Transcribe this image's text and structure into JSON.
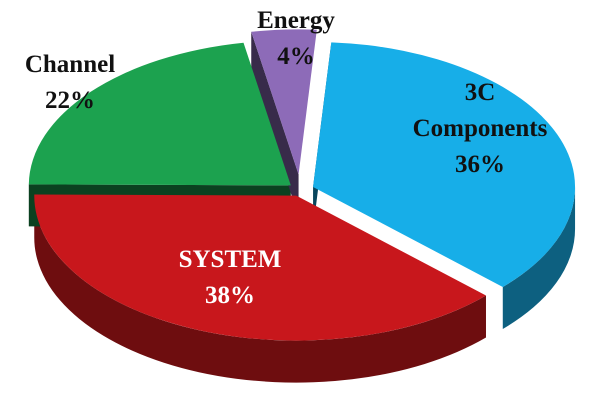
{
  "chart_data": {
    "type": "pie",
    "style": "3d-exploded",
    "title": "",
    "slices": [
      {
        "label_lines": [
          "3C",
          "Components"
        ],
        "label": "3C Components",
        "value": 36,
        "value_text": "36%",
        "color": "#17aee8",
        "label_color": "#111111"
      },
      {
        "label_lines": [
          "SYSTEM"
        ],
        "label": "SYSTEM",
        "value": 38,
        "value_text": "38%",
        "color": "#c8171c",
        "label_color": "#ffffff"
      },
      {
        "label_lines": [
          "Channel"
        ],
        "label": "Channel",
        "value": 22,
        "value_text": "22%",
        "color": "#1ca24f",
        "label_color": "#111111"
      },
      {
        "label_lines": [
          "Energy"
        ],
        "label": "Energy",
        "value": 4,
        "value_text": "4%",
        "color": "#8d6bb8",
        "label_color": "#111111"
      }
    ]
  }
}
